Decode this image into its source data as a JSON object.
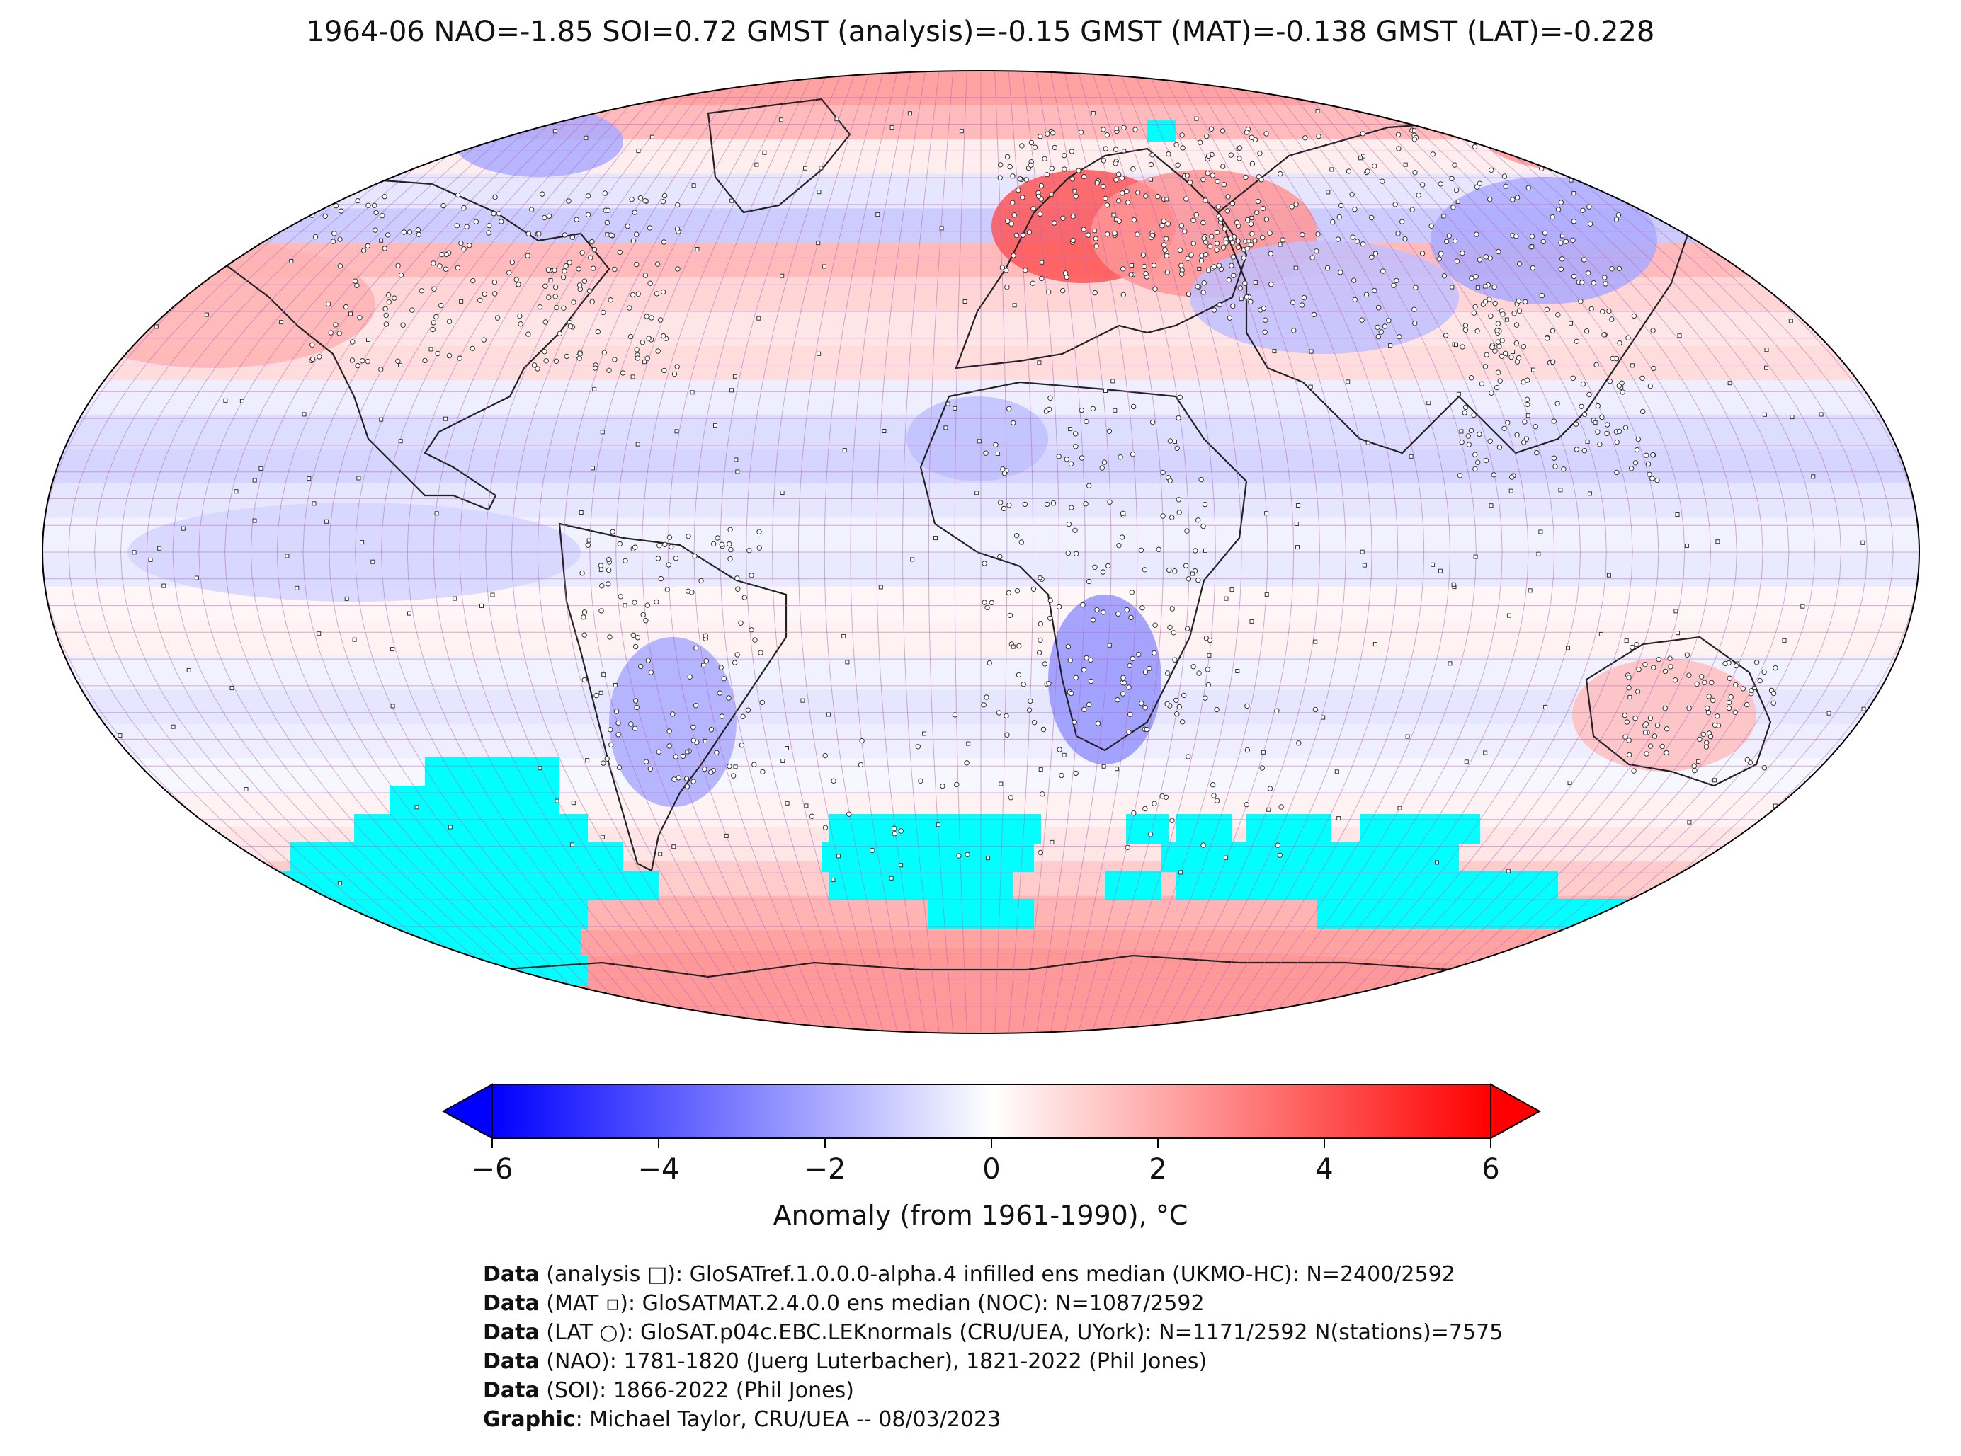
{
  "title": "1964-06 NAO=-1.85 SOI=0.72 GMST (analysis)=-0.15 GMST (MAT)=-0.138 GMST (LAT)=-0.228",
  "map": {
    "projection": "Robinson (global)",
    "grid": "5-degree lat/lon boxes",
    "no_data_color": "#00ffff",
    "symbols": {
      "analysis": "square",
      "MAT": "small square",
      "LAT": "circle (stations)"
    },
    "regions": [
      {
        "name": "Central/Eastern Europe",
        "anomaly": 4.0
      },
      {
        "name": "Western Russia",
        "anomaly": 2.5
      },
      {
        "name": "Eastern Siberia / Chukotka",
        "anomaly": 2.5
      },
      {
        "name": "North Pacific",
        "anomaly": 1.8
      },
      {
        "name": "Antarctica",
        "anomaly": 2.5
      },
      {
        "name": "Australia",
        "anomaly": 1.5
      },
      {
        "name": "Central Siberia",
        "anomaly": -2.0
      },
      {
        "name": "Central Asia",
        "anomaly": -1.5
      },
      {
        "name": "Southern Africa",
        "anomaly": -2.5
      },
      {
        "name": "Southern South America",
        "anomaly": -2.0
      },
      {
        "name": "West Africa",
        "anomaly": -1.5
      },
      {
        "name": "Eastern Tropical Pacific",
        "anomaly": -1.0
      },
      {
        "name": "Canadian Arctic",
        "anomaly": -2.0
      }
    ]
  },
  "colorbar": {
    "min": -6,
    "max": 6,
    "ticks": [
      "−6",
      "−4",
      "−2",
      "0",
      "2",
      "4",
      "6"
    ],
    "tick_values": [
      -6,
      -4,
      -2,
      0,
      2,
      4,
      6
    ],
    "colors": [
      "#0000ff",
      "#ffffff",
      "#ff0000"
    ],
    "extend": "both",
    "label": "Anomaly (from 1961-1990), °C"
  },
  "credits": [
    {
      "bold": "Data",
      "text": " (analysis □): GloSATref.1.0.0.0-alpha.4 infilled ens median (UKMO-HC): N=2400/2592"
    },
    {
      "bold": "Data",
      "text": " (MAT ▫): GloSATMAT.2.4.0.0 ens median (NOC): N=1087/2592"
    },
    {
      "bold": "Data",
      "text": " (LAT ○): GloSAT.p04c.EBC.LEKnormals (CRU/UEA, UYork): N=1171/2592 N(stations)=7575"
    },
    {
      "bold": "Data",
      "text": " (NAO): 1781-1820 (Juerg Luterbacher), 1821-2022 (Phil Jones)"
    },
    {
      "bold": "Data",
      "text": " (SOI): 1866-2022 (Phil Jones)"
    },
    {
      "bold": "Graphic",
      "text": ": Michael Taylor, CRU/UEA -- 08/03/2023"
    }
  ]
}
